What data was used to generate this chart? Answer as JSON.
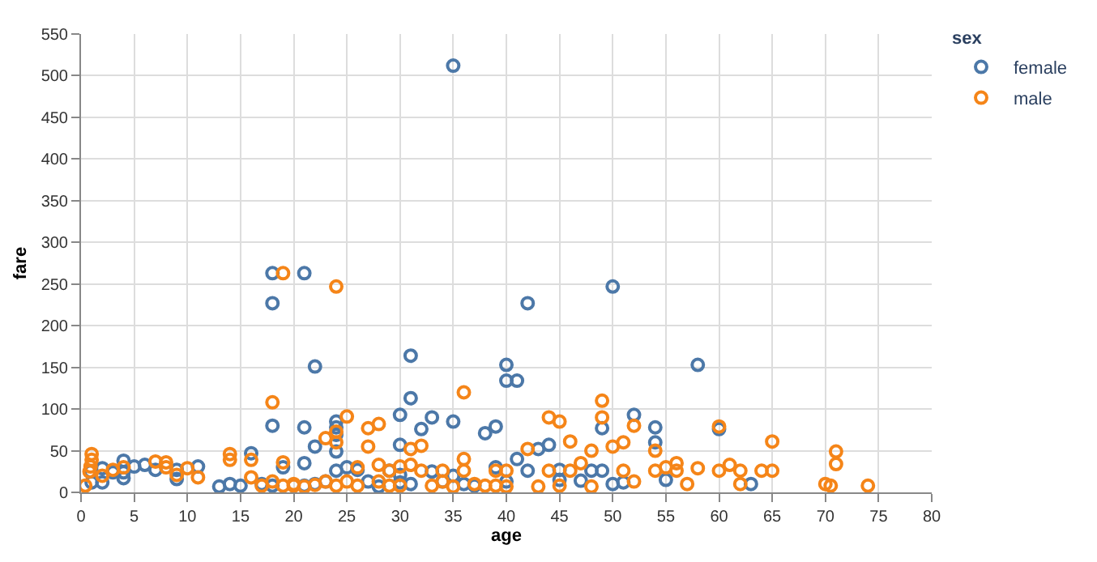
{
  "chart_data": {
    "type": "scatter",
    "xlabel": "age",
    "ylabel": "fare",
    "legend_title": "sex",
    "legend": "top right",
    "grid": true,
    "marker": "circle",
    "xlim": [
      0,
      80
    ],
    "xticks": [
      0,
      5,
      10,
      15,
      20,
      25,
      30,
      35,
      40,
      45,
      50,
      55,
      60,
      65,
      70,
      75,
      80
    ],
    "ylim": [
      0,
      550
    ],
    "yticks": [
      0,
      50,
      100,
      150,
      200,
      250,
      300,
      350,
      400,
      450,
      500,
      550
    ],
    "series": [
      {
        "name": "female",
        "color": "#4c78a8",
        "x": [
          0.9,
          1,
          2,
          2,
          3,
          4,
          4,
          4,
          5,
          6,
          7,
          9,
          9,
          11,
          13,
          14,
          15,
          16,
          17,
          18,
          18,
          18,
          18,
          19,
          21,
          21,
          21,
          21,
          22,
          22,
          22,
          23,
          24,
          24,
          24,
          24,
          24,
          25,
          26,
          27,
          28,
          29,
          30,
          30,
          30,
          30,
          31,
          31,
          31,
          32,
          33,
          33,
          34,
          35,
          35,
          36,
          37,
          38,
          39,
          39,
          40,
          40,
          40,
          41,
          41,
          42,
          42,
          43,
          44,
          45,
          45,
          47,
          48,
          49,
          49,
          50,
          50,
          51,
          52,
          54,
          54,
          55,
          58,
          60,
          63,
          35
        ],
        "values": [
          25,
          12,
          12,
          29,
          24,
          38,
          24,
          17,
          31,
          33,
          27,
          27,
          16,
          31,
          7,
          10,
          8,
          47,
          10,
          263,
          227,
          80,
          8,
          30,
          263,
          78,
          35,
          8,
          151,
          55,
          10,
          13,
          85,
          78,
          69,
          49,
          26,
          30,
          27,
          13,
          7,
          26,
          93,
          57,
          21,
          12,
          164,
          113,
          10,
          76,
          90,
          25,
          13,
          85,
          20,
          10,
          8,
          71,
          79,
          30,
          153,
          134,
          13,
          134,
          40,
          227,
          26,
          52,
          57,
          27,
          15,
          14,
          26,
          77,
          26,
          247,
          10,
          12,
          93,
          78,
          60,
          15,
          153,
          76,
          10,
          512
        ]
      },
      {
        "name": "male",
        "color": "#f58518",
        "x": [
          0.4,
          0.8,
          0.9,
          1,
          1,
          2,
          3,
          4,
          7,
          8,
          8,
          9,
          10,
          11,
          14,
          14,
          16,
          16,
          17,
          18,
          18,
          19,
          19,
          19,
          20,
          20,
          21,
          22,
          23,
          23,
          24,
          24,
          24,
          24,
          25,
          25,
          26,
          26,
          27,
          27,
          28,
          28,
          28,
          29,
          29,
          30,
          30,
          31,
          31,
          32,
          32,
          33,
          34,
          34,
          35,
          36,
          36,
          36,
          37,
          38,
          39,
          39,
          40,
          40,
          42,
          43,
          44,
          44,
          45,
          45,
          46,
          46,
          47,
          48,
          48,
          49,
          49,
          50,
          51,
          51,
          52,
          52,
          54,
          54,
          55,
          56,
          56,
          57,
          58,
          60,
          60,
          61,
          62,
          62,
          64,
          65,
          65,
          70,
          70.5,
          71,
          71,
          74
        ],
        "values": [
          8,
          25,
          31,
          39,
          46,
          20,
          27,
          30,
          37,
          36,
          30,
          21,
          29,
          18,
          46,
          39,
          39,
          18,
          8,
          108,
          13,
          263,
          36,
          8,
          8,
          10,
          7,
          9,
          65,
          13,
          247,
          73,
          60,
          8,
          91,
          13,
          8,
          30,
          77,
          55,
          82,
          33,
          13,
          26,
          8,
          31,
          8,
          52,
          33,
          56,
          26,
          8,
          26,
          13,
          7,
          120,
          40,
          26,
          10,
          8,
          26,
          8,
          26,
          7,
          52,
          7,
          90,
          26,
          85,
          8,
          61,
          26,
          35,
          50,
          7,
          110,
          90,
          55,
          60,
          26,
          80,
          13,
          26,
          50,
          30,
          35,
          26,
          10,
          29,
          79,
          26,
          33,
          26,
          10,
          26,
          61,
          26,
          10,
          8,
          49,
          34,
          8
        ]
      }
    ]
  }
}
